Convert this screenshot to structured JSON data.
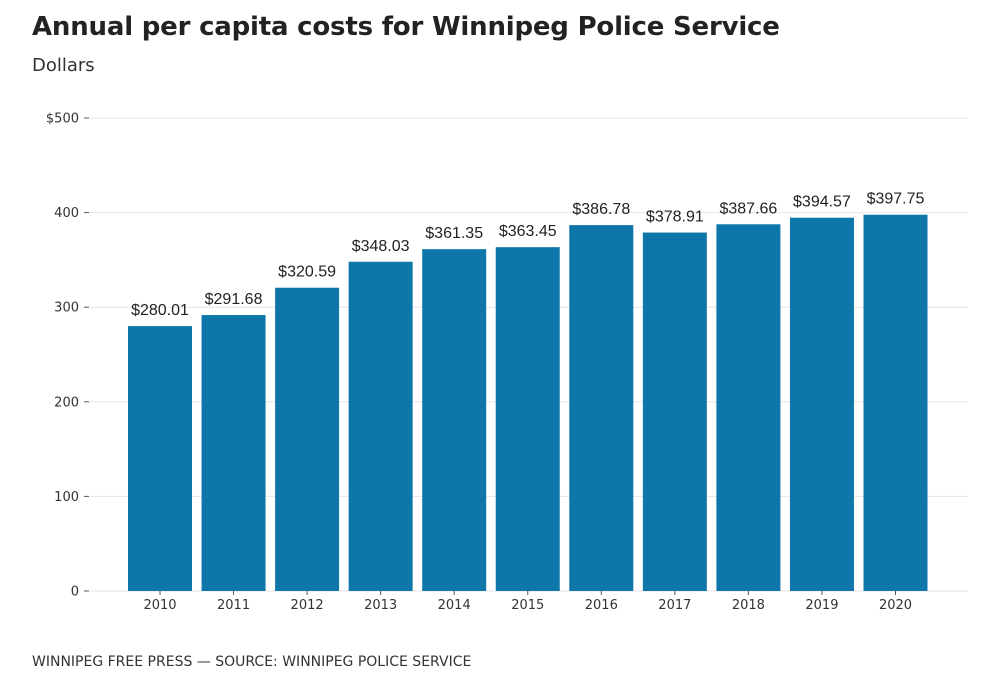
{
  "chart_data": {
    "type": "bar",
    "title": "Annual per capita costs for Winnipeg Police Service",
    "subtitle": "Dollars",
    "xlabel": "",
    "ylabel": "",
    "categories": [
      "2010",
      "2011",
      "2012",
      "2013",
      "2014",
      "2015",
      "2016",
      "2017",
      "2018",
      "2019",
      "2020"
    ],
    "values": [
      280.01,
      291.68,
      320.59,
      348.03,
      361.35,
      363.45,
      386.78,
      378.91,
      387.66,
      394.57,
      397.75
    ],
    "data_labels": [
      "$280.01",
      "$291.68",
      "$320.59",
      "$348.03",
      "$361.35",
      "$363.45",
      "$386.78",
      "$378.91",
      "$387.66",
      "$394.57",
      "$397.75"
    ],
    "ylim": [
      0,
      500
    ],
    "y_ticks": [
      0,
      100,
      200,
      300,
      400,
      500
    ],
    "y_tick_labels": [
      "0",
      "100",
      "200",
      "300",
      "400",
      "$500"
    ],
    "grid": true,
    "bar_color": "#0e76a8",
    "source": "WINNIPEG FREE PRESS — SOURCE: WINNIPEG POLICE SERVICE"
  }
}
